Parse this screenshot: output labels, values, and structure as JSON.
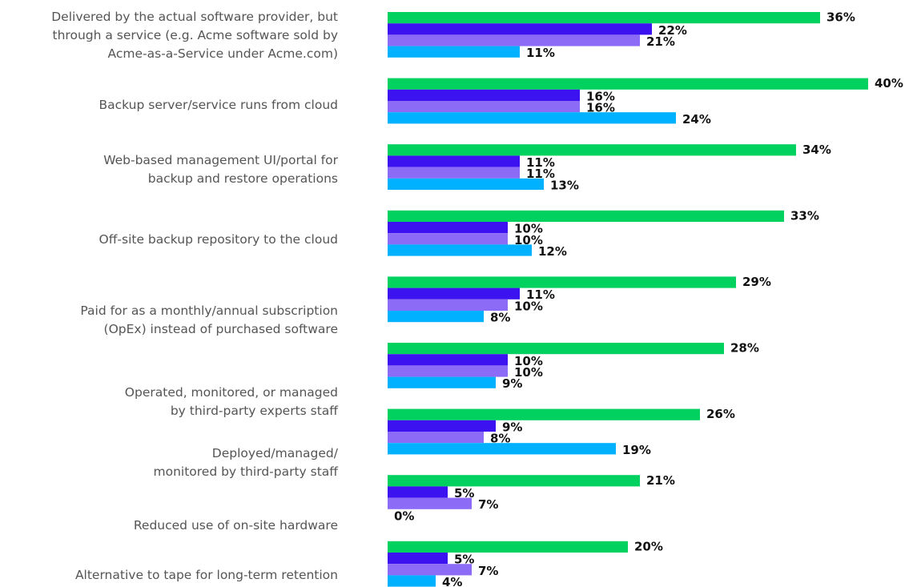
{
  "chart_data": {
    "type": "bar",
    "orientation": "horizontal",
    "categories": [
      "Delivered by the actual software provider, but\nthrough a service (e.g. Acme software sold by\nAcme-as-a-Service under Acme.com)",
      "Backup server/service runs from cloud",
      "Web-based management UI/portal for\nbackup and restore operations",
      "Off-site backup repository to the cloud",
      "Paid for as a monthly/annual subscription\n(OpEx) instead of purchased software",
      "Operated, monitored, or managed\nby third-party experts staff",
      "Deployed/managed/\nmonitored by third-party staff",
      "Reduced use of on-site hardware",
      "Alternative to tape for long-term retention"
    ],
    "series": [
      {
        "color": "#00d15f",
        "values": [
          36,
          40,
          34,
          33,
          29,
          28,
          26,
          21,
          20
        ],
        "value_labels": [
          "36%",
          "40%",
          "34%",
          "33%",
          "29%",
          "28%",
          "26%",
          "21%",
          "20%"
        ]
      },
      {
        "color": "#3c13f0",
        "values": [
          22,
          16,
          11,
          10,
          11,
          10,
          9,
          5,
          5
        ],
        "value_labels": [
          "22%",
          "16%",
          "11%",
          "10%",
          "11%",
          "10%",
          "9%",
          "5%",
          "5%"
        ]
      },
      {
        "color": "#8c6cf6",
        "values": [
          21,
          16,
          11,
          10,
          10,
          10,
          8,
          7,
          7
        ],
        "value_labels": [
          "21%",
          "16%",
          "11%",
          "10%",
          "10%",
          "10%",
          "8%",
          "7%",
          "7%"
        ]
      },
      {
        "color": "#00b1ff",
        "values": [
          11,
          24,
          13,
          12,
          8,
          9,
          19,
          0,
          4
        ],
        "value_labels": [
          "11%",
          "24%",
          "13%",
          "12%",
          "8%",
          "9%",
          "19%",
          "0%",
          "4%"
        ]
      }
    ],
    "xlim": [
      0,
      40
    ]
  }
}
